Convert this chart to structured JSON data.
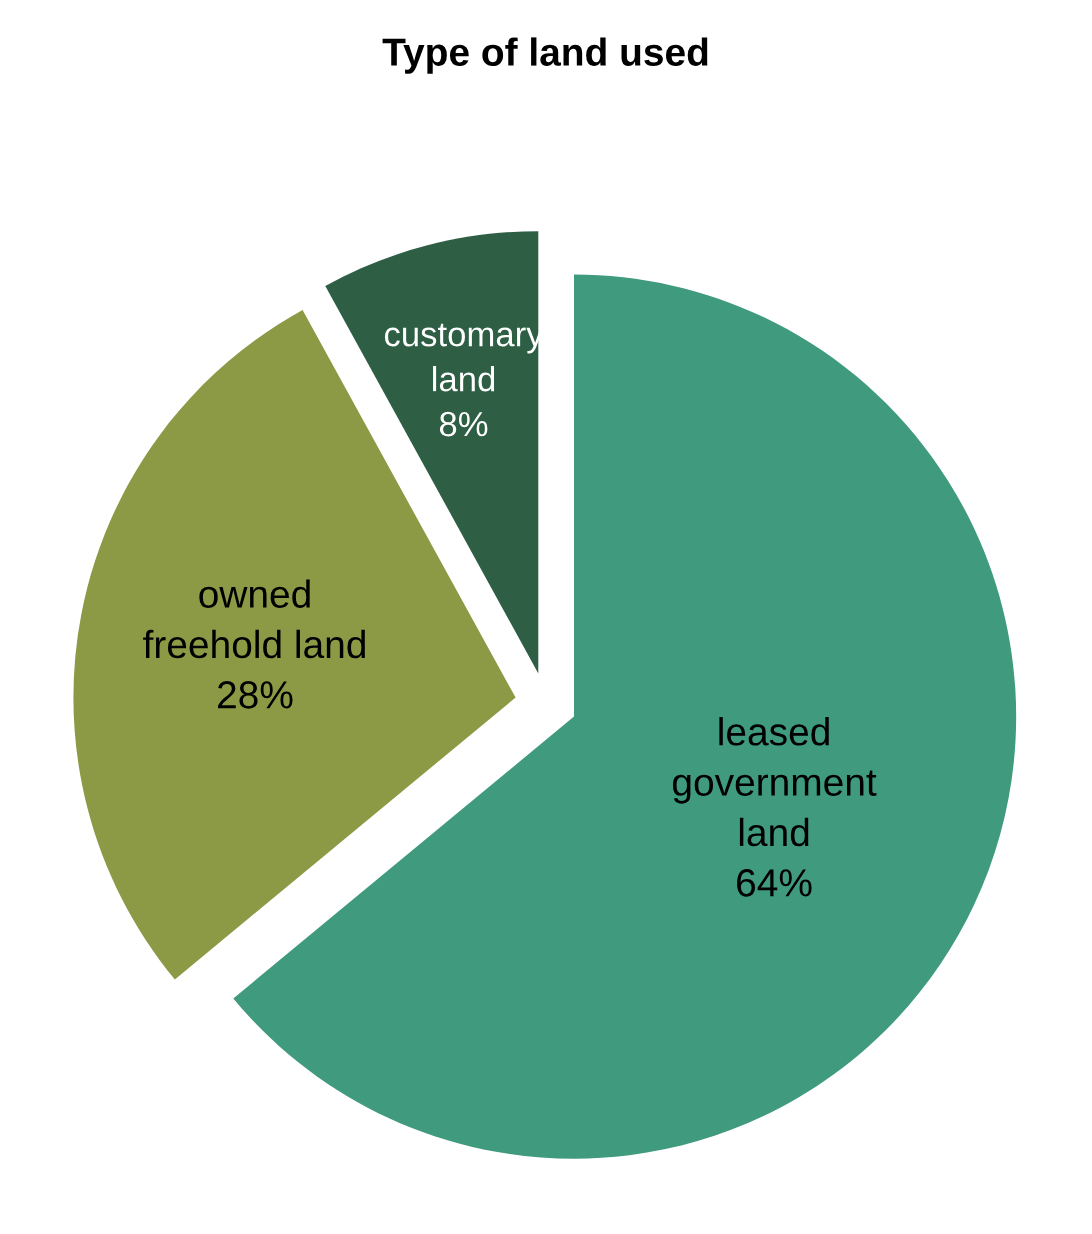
{
  "chart_data": {
    "type": "pie",
    "title": "Type of land used",
    "categories": [
      "leased\ngovernment\nland",
      "owned\nfreehold land",
      "customary\nland"
    ],
    "values": [
      64,
      28,
      8
    ],
    "colors": [
      "#3f9a7e",
      "#8c9a45",
      "#2e5f45"
    ],
    "value_labels": [
      "64%",
      "28%",
      "8%"
    ]
  }
}
